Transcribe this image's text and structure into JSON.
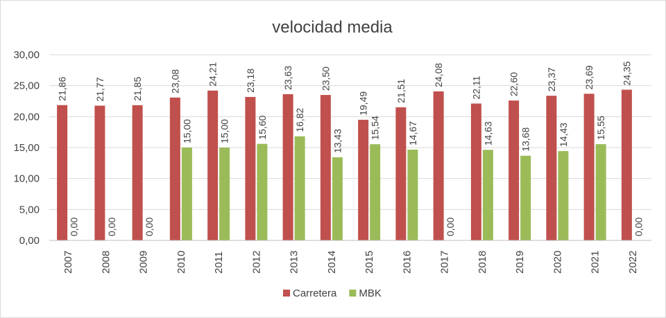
{
  "chart_data": {
    "type": "bar",
    "title": "velocidad media",
    "xlabel": "",
    "ylabel": "",
    "categories": [
      "2007",
      "2008",
      "2009",
      "2010",
      "2011",
      "2012",
      "2013",
      "2014",
      "2015",
      "2016",
      "2017",
      "2018",
      "2019",
      "2020",
      "2021",
      "2022"
    ],
    "ylim": [
      0,
      30
    ],
    "ytick_labels": [
      "0,00",
      "5,00",
      "10,00",
      "15,00",
      "20,00",
      "25,00",
      "30,00"
    ],
    "grid": true,
    "legend_position": "bottom",
    "series": [
      {
        "name": "Carretera",
        "color": "#c0504d",
        "values": [
          21.86,
          21.77,
          21.85,
          23.08,
          24.21,
          23.18,
          23.63,
          23.5,
          19.49,
          21.51,
          24.08,
          22.11,
          22.6,
          23.37,
          23.69,
          24.35
        ],
        "labels": [
          "21,86",
          "21,77",
          "21,85",
          "23,08",
          "24,21",
          "23,18",
          "23,63",
          "23,50",
          "19,49",
          "21,51",
          "24,08",
          "22,11",
          "22,60",
          "23,37",
          "23,69",
          "24,35"
        ]
      },
      {
        "name": "MBK",
        "color": "#9bbb59",
        "values": [
          0,
          0,
          0,
          15.0,
          15.0,
          15.6,
          16.82,
          13.43,
          15.54,
          14.67,
          0,
          14.63,
          13.68,
          14.43,
          15.55,
          0
        ],
        "labels": [
          "0,00",
          "0,00",
          "0,00",
          "15,00",
          "15,00",
          "15,60",
          "16,82",
          "13,43",
          "15,54",
          "14,67",
          "0,00",
          "14,63",
          "13,68",
          "14,43",
          "15,55",
          "0,00"
        ]
      }
    ]
  }
}
